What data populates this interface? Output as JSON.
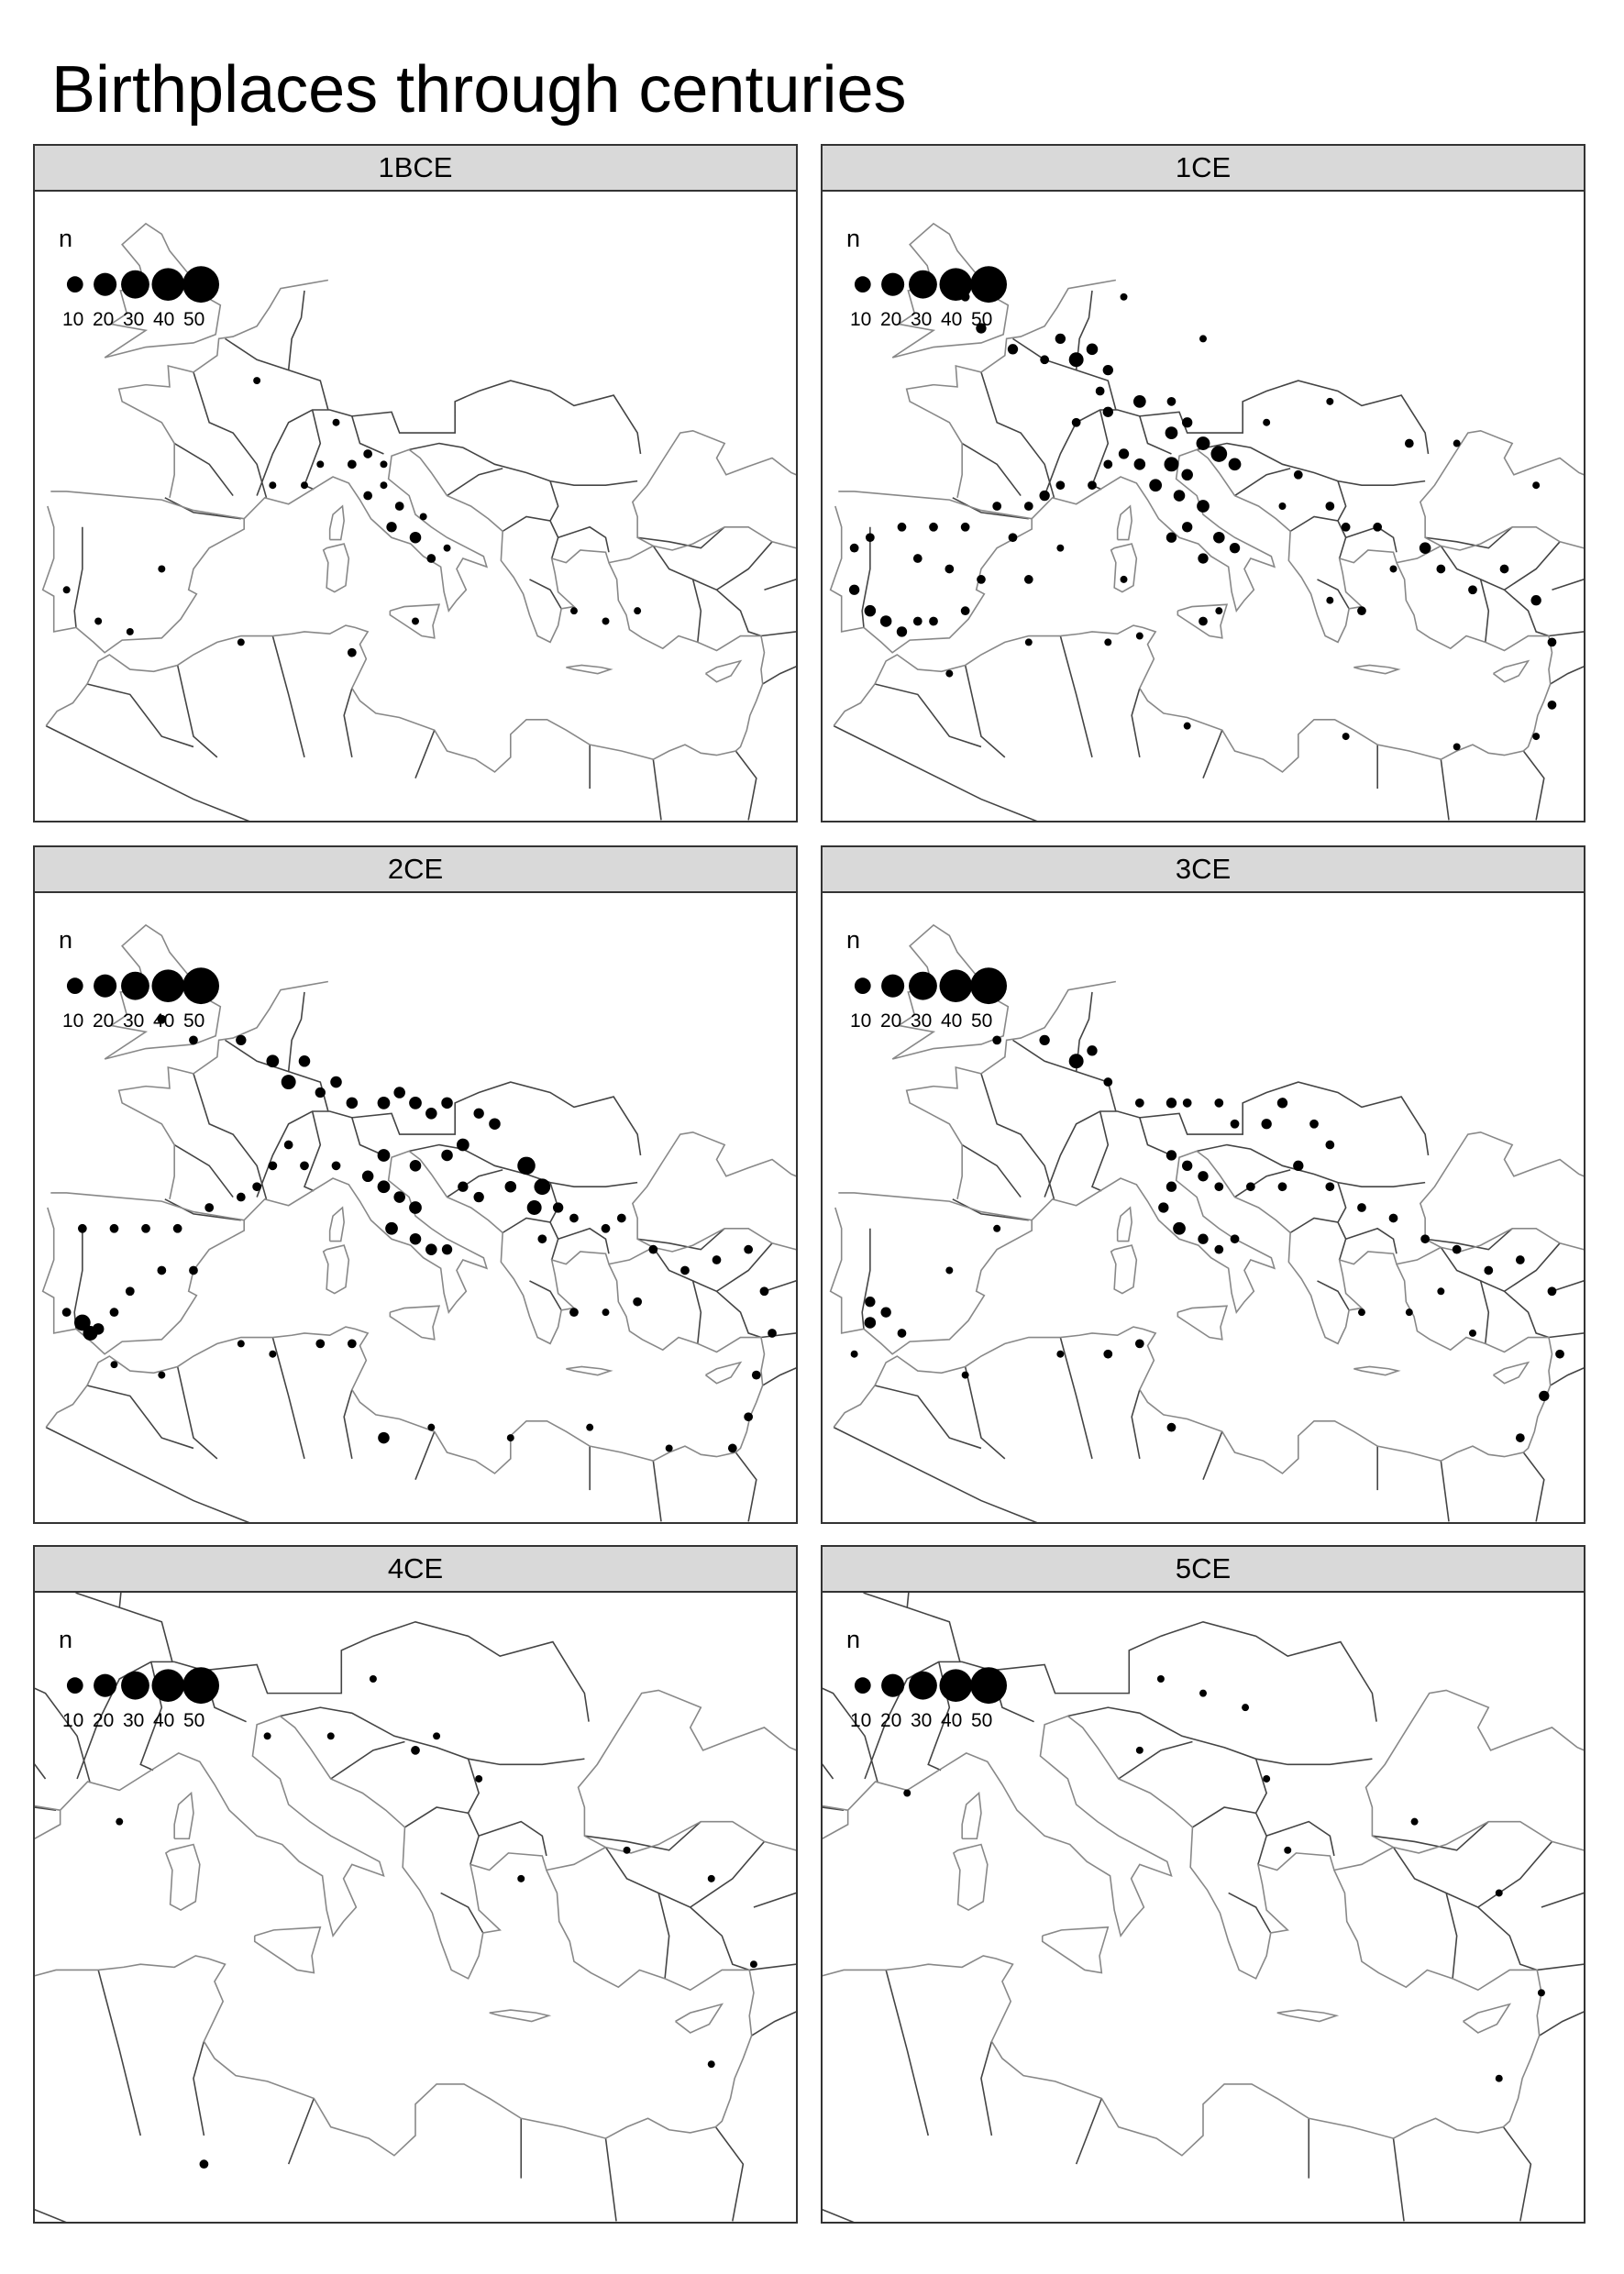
{
  "title": "Birthplaces through centuries",
  "legend": {
    "title": "n",
    "sizes": [
      10,
      20,
      30,
      40,
      50
    ],
    "labels": [
      "10",
      "20",
      "30",
      "40",
      "50"
    ],
    "symbol": "filled-circle",
    "color": "#000000"
  },
  "colors": {
    "strip_background": "#d9d9d9",
    "border_lines": "#444444",
    "coastline": "#888888",
    "points": "#000000"
  },
  "panels": [
    {
      "label": "1BCE",
      "view": "wide",
      "points": [
        [
          4,
          49,
          2
        ],
        [
          9,
          47,
          2
        ],
        [
          10,
          45,
          3
        ],
        [
          11,
          45.5,
          3
        ],
        [
          12,
          44,
          2
        ],
        [
          12.5,
          42,
          4
        ],
        [
          13,
          43,
          3
        ],
        [
          14,
          41.5,
          5
        ],
        [
          15,
          40.5,
          3
        ],
        [
          16,
          41,
          2
        ],
        [
          14.5,
          42.5,
          2
        ],
        [
          11,
          43.5,
          3
        ],
        [
          8,
          45,
          2
        ],
        [
          7,
          44,
          2
        ],
        [
          -6,
          37.5,
          2
        ],
        [
          -4,
          37,
          2
        ],
        [
          -8,
          39,
          2
        ],
        [
          -2,
          40,
          2
        ],
        [
          10,
          36,
          3
        ],
        [
          3,
          36.5,
          2
        ],
        [
          24,
          38,
          2
        ],
        [
          26,
          37.5,
          2
        ],
        [
          28,
          38,
          2
        ],
        [
          14,
          37.5,
          2
        ],
        [
          5,
          44,
          2
        ],
        [
          12,
          45,
          2
        ]
      ]
    },
    {
      "label": "1CE",
      "view": "wide",
      "points": [
        [
          -1,
          53,
          3
        ],
        [
          0,
          51.5,
          4
        ],
        [
          2,
          50.5,
          4
        ],
        [
          4,
          50,
          3
        ],
        [
          5,
          51,
          4
        ],
        [
          6,
          50,
          8
        ],
        [
          7,
          50.5,
          5
        ],
        [
          8,
          49.5,
          4
        ],
        [
          7.5,
          48.5,
          3
        ],
        [
          6,
          47,
          3
        ],
        [
          8,
          47.5,
          4
        ],
        [
          10,
          48,
          6
        ],
        [
          12,
          48,
          3
        ],
        [
          13,
          47,
          4
        ],
        [
          12,
          46.5,
          6
        ],
        [
          14,
          46,
          7
        ],
        [
          15,
          45.5,
          10
        ],
        [
          16,
          45,
          6
        ],
        [
          13,
          44.5,
          5
        ],
        [
          12,
          45,
          8
        ],
        [
          11,
          44,
          6
        ],
        [
          12.5,
          43.5,
          5
        ],
        [
          14,
          43,
          6
        ],
        [
          13,
          42,
          4
        ],
        [
          15,
          41.5,
          5
        ],
        [
          16,
          41,
          4
        ],
        [
          14,
          40.5,
          4
        ],
        [
          12,
          41.5,
          4
        ],
        [
          10,
          45,
          5
        ],
        [
          9,
          45.5,
          4
        ],
        [
          8,
          45,
          3
        ],
        [
          7,
          44,
          3
        ],
        [
          5,
          44,
          3
        ],
        [
          4,
          43.5,
          4
        ],
        [
          3,
          43,
          3
        ],
        [
          1,
          43,
          3
        ],
        [
          -1,
          42,
          3
        ],
        [
          -3,
          42,
          3
        ],
        [
          -5,
          42,
          3
        ],
        [
          -7,
          41.5,
          3
        ],
        [
          -8,
          41,
          3
        ],
        [
          -8,
          39,
          4
        ],
        [
          -7,
          38,
          5
        ],
        [
          -6,
          37.5,
          5
        ],
        [
          -5,
          37,
          4
        ],
        [
          -4,
          37.5,
          3
        ],
        [
          -3,
          37.5,
          3
        ],
        [
          -1,
          38,
          3
        ],
        [
          0,
          39.5,
          3
        ],
        [
          -2,
          40,
          3
        ],
        [
          -4,
          40.5,
          3
        ],
        [
          3,
          39.5,
          3
        ],
        [
          5,
          41,
          2
        ],
        [
          2,
          41.5,
          3
        ],
        [
          9,
          39.5,
          2
        ],
        [
          14,
          37.5,
          3
        ],
        [
          15,
          38,
          2
        ],
        [
          10,
          36.8,
          2
        ],
        [
          8,
          36.5,
          2
        ],
        [
          20,
          44.5,
          3
        ],
        [
          22,
          43,
          3
        ],
        [
          19,
          43,
          2
        ],
        [
          23,
          42,
          3
        ],
        [
          25,
          42,
          3
        ],
        [
          24,
          38,
          3
        ],
        [
          22,
          38.5,
          2
        ],
        [
          26,
          40,
          2
        ],
        [
          28,
          41,
          5
        ],
        [
          29,
          40,
          3
        ],
        [
          31,
          39,
          3
        ],
        [
          33,
          40,
          3
        ],
        [
          35,
          38.5,
          4
        ],
        [
          36,
          36.5,
          3
        ],
        [
          36,
          33.5,
          3
        ],
        [
          35,
          32,
          2
        ],
        [
          30,
          31.5,
          2
        ],
        [
          23,
          32,
          2
        ],
        [
          13,
          32.5,
          2
        ],
        [
          3,
          36.5,
          2
        ],
        [
          -2,
          35,
          2
        ],
        [
          18,
          47,
          2
        ],
        [
          22,
          48,
          2
        ],
        [
          27,
          46,
          3
        ],
        [
          35,
          44,
          2
        ],
        [
          30,
          46,
          2
        ],
        [
          9,
          53,
          2
        ],
        [
          14,
          51,
          2
        ]
      ]
    },
    {
      "label": "2CE",
      "view": "wide",
      "points": [
        [
          -2,
          52,
          3
        ],
        [
          0,
          51,
          3
        ],
        [
          3,
          51,
          4
        ],
        [
          5,
          50,
          6
        ],
        [
          6,
          49,
          8
        ],
        [
          7,
          50,
          5
        ],
        [
          8,
          48.5,
          4
        ],
        [
          9,
          49,
          5
        ],
        [
          10,
          48,
          5
        ],
        [
          12,
          48,
          6
        ],
        [
          13,
          48.5,
          5
        ],
        [
          14,
          48,
          6
        ],
        [
          15,
          47.5,
          5
        ],
        [
          16,
          48,
          5
        ],
        [
          18,
          47.5,
          4
        ],
        [
          19,
          47,
          5
        ],
        [
          17,
          46,
          6
        ],
        [
          16,
          45.5,
          5
        ],
        [
          14,
          45,
          5
        ],
        [
          12,
          45.5,
          6
        ],
        [
          11,
          44.5,
          5
        ],
        [
          12,
          44,
          6
        ],
        [
          13,
          43.5,
          5
        ],
        [
          14,
          43,
          6
        ],
        [
          12.5,
          42,
          6
        ],
        [
          14,
          41.5,
          5
        ],
        [
          15,
          41,
          5
        ],
        [
          16,
          41,
          4
        ],
        [
          17,
          44,
          4
        ],
        [
          18,
          43.5,
          4
        ],
        [
          20,
          44,
          5
        ],
        [
          21,
          45,
          12
        ],
        [
          22,
          44,
          10
        ],
        [
          21.5,
          43,
          8
        ],
        [
          23,
          43,
          4
        ],
        [
          24,
          42.5,
          3
        ],
        [
          22,
          41.5,
          3
        ],
        [
          26,
          42,
          3
        ],
        [
          27,
          42.5,
          3
        ],
        [
          29,
          41,
          3
        ],
        [
          31,
          40,
          3
        ],
        [
          33,
          40.5,
          3
        ],
        [
          35,
          41,
          3
        ],
        [
          36,
          39,
          3
        ],
        [
          36.5,
          37,
          3
        ],
        [
          35.5,
          35,
          3
        ],
        [
          35,
          33,
          3
        ],
        [
          34,
          31.5,
          3
        ],
        [
          30,
          31.5,
          2
        ],
        [
          25,
          32.5,
          2
        ],
        [
          20,
          32,
          2
        ],
        [
          15,
          32.5,
          2
        ],
        [
          10,
          36.5,
          3
        ],
        [
          8,
          36.5,
          3
        ],
        [
          5,
          36,
          2
        ],
        [
          3,
          36.5,
          2
        ],
        [
          -2,
          35,
          2
        ],
        [
          -5,
          35.5,
          2
        ],
        [
          -8,
          38,
          3
        ],
        [
          -7,
          37.5,
          10
        ],
        [
          -6.5,
          37,
          8
        ],
        [
          -6,
          37.2,
          5
        ],
        [
          -5,
          38,
          3
        ],
        [
          -4,
          39,
          3
        ],
        [
          -2,
          40,
          3
        ],
        [
          0,
          40,
          3
        ],
        [
          -1,
          42,
          3
        ],
        [
          -3,
          42,
          3
        ],
        [
          -5,
          42,
          3
        ],
        [
          -7,
          42,
          3
        ],
        [
          1,
          43,
          3
        ],
        [
          3,
          43.5,
          3
        ],
        [
          4,
          44,
          3
        ],
        [
          5,
          45,
          3
        ],
        [
          6,
          46,
          3
        ],
        [
          7,
          45,
          3
        ],
        [
          9,
          45,
          3
        ],
        [
          24,
          38,
          3
        ],
        [
          26,
          38,
          2
        ],
        [
          28,
          38.5,
          3
        ],
        [
          12,
          32,
          5
        ]
      ]
    },
    {
      "label": "3CE",
      "view": "wide",
      "points": [
        [
          1,
          51,
          3
        ],
        [
          4,
          51,
          4
        ],
        [
          6,
          50,
          8
        ],
        [
          7,
          50.5,
          4
        ],
        [
          8,
          49,
          3
        ],
        [
          10,
          48,
          3
        ],
        [
          12,
          48,
          4
        ],
        [
          13,
          48,
          3
        ],
        [
          15,
          48,
          3
        ],
        [
          16,
          47,
          3
        ],
        [
          18,
          47,
          4
        ],
        [
          19,
          48,
          4
        ],
        [
          21,
          47,
          3
        ],
        [
          22,
          46,
          3
        ],
        [
          12,
          45.5,
          4
        ],
        [
          13,
          45,
          4
        ],
        [
          14,
          44.5,
          4
        ],
        [
          15,
          44,
          3
        ],
        [
          12,
          44,
          4
        ],
        [
          11.5,
          43,
          4
        ],
        [
          12.5,
          42,
          6
        ],
        [
          14,
          41.5,
          4
        ],
        [
          15,
          41,
          3
        ],
        [
          16,
          41.5,
          3
        ],
        [
          17,
          44,
          3
        ],
        [
          19,
          44,
          3
        ],
        [
          20,
          45,
          4
        ],
        [
          22,
          44,
          3
        ],
        [
          24,
          43,
          3
        ],
        [
          26,
          42.5,
          3
        ],
        [
          28,
          41.5,
          3
        ],
        [
          30,
          41,
          3
        ],
        [
          32,
          40,
          3
        ],
        [
          34,
          40.5,
          3
        ],
        [
          36,
          39,
          3
        ],
        [
          36.5,
          36,
          3
        ],
        [
          35.5,
          34,
          4
        ],
        [
          34,
          32,
          3
        ],
        [
          12,
          32.5,
          3
        ],
        [
          10,
          36.5,
          3
        ],
        [
          8,
          36,
          3
        ],
        [
          5,
          36,
          2
        ],
        [
          -1,
          35,
          2
        ],
        [
          -7,
          37.5,
          5
        ],
        [
          -6,
          38,
          4
        ],
        [
          -7,
          38.5,
          4
        ],
        [
          -5,
          37,
          3
        ],
        [
          -8,
          36,
          2
        ],
        [
          -2,
          40,
          2
        ],
        [
          1,
          42,
          2
        ],
        [
          24,
          38,
          2
        ],
        [
          27,
          38,
          2
        ],
        [
          29,
          39,
          2
        ],
        [
          31,
          37,
          2
        ]
      ]
    },
    {
      "label": "4CE",
      "view": "east",
      "points": [
        [
          18,
          47,
          2
        ],
        [
          21,
          45,
          2
        ],
        [
          23,
          43.5,
          2
        ],
        [
          20,
          44.5,
          3
        ],
        [
          16,
          45,
          2
        ],
        [
          25,
          40,
          2
        ],
        [
          30,
          41,
          2
        ],
        [
          34,
          40,
          2
        ],
        [
          36,
          37,
          2
        ],
        [
          34,
          33.5,
          2
        ],
        [
          10,
          30,
          3
        ],
        [
          6,
          42,
          2
        ],
        [
          13,
          45,
          2
        ]
      ]
    },
    {
      "label": "5CE",
      "view": "east",
      "points": [
        [
          18,
          47,
          2
        ],
        [
          20,
          46.5,
          2
        ],
        [
          22,
          46,
          2
        ],
        [
          23,
          43.5,
          2
        ],
        [
          17,
          44.5,
          2
        ],
        [
          24,
          41,
          2
        ],
        [
          30,
          42,
          2
        ],
        [
          34,
          39.5,
          2
        ],
        [
          36,
          36,
          2
        ],
        [
          34,
          33,
          2
        ],
        [
          6,
          43,
          2
        ]
      ]
    }
  ]
}
